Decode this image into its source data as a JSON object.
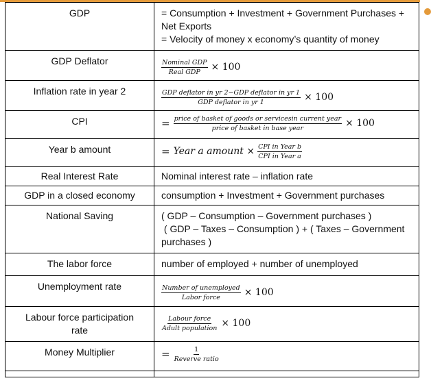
{
  "rows": {
    "gdp": {
      "term": "GDP",
      "def_line1": "= Consumption + Investment + Government Purchases +",
      "def_line2": "Net Exports",
      "def_line3": "= Velocity of money x economy’s quantity of money"
    },
    "gdp_deflator": {
      "term": "GDP Deflator",
      "numerator": "Nominal GDP",
      "denominator": "Real GDP",
      "times": "× 100"
    },
    "inflation_rate": {
      "term": "Inflation rate in year 2",
      "numerator": "GDP deflator in yr 2−GDP deflator in yr 1",
      "denominator": "GDP deflator in yr 1",
      "times": "× 100"
    },
    "cpi": {
      "term": "CPI",
      "equals": "=",
      "numerator": "price of basket of goods or servicesin current year",
      "denominator": "price of basket in base year",
      "times": "× 100"
    },
    "year_b_amount": {
      "term": "Year b amount",
      "equals": "=",
      "lhs": "Year a amount ×",
      "numerator": "CPI in Year b",
      "denominator": "CPI in Year a"
    },
    "real_interest_rate": {
      "term": "Real Interest Rate",
      "def": "Nominal interest rate – inflation rate"
    },
    "gdp_closed": {
      "term": "GDP in a closed economy",
      "def": "consumption + Investment + Government purchases"
    },
    "national_saving": {
      "term": "National Saving",
      "def_line1": "( GDP – Consumption – Government purchases )",
      "def_line2": " ( GDP – Taxes – Consumption ) + ( Taxes – Government",
      "def_line3": "purchases )"
    },
    "labor_force": {
      "term": "The labor force",
      "def": "number of employed + number of unemployed"
    },
    "unemployment_rate": {
      "term": "Unemployment rate",
      "numerator": "Number of unemployed",
      "denominator": "Labor force",
      "times": "× 100"
    },
    "lfpr": {
      "term_line1": "Labour force participation",
      "term_line2": "rate",
      "numerator": "Labour force",
      "denominator": "Adult population",
      "times": "× 100"
    },
    "money_multiplier": {
      "term": "Money Multiplier",
      "equals": "=",
      "numerator": "1",
      "denominator": "Reverve ratio"
    }
  },
  "colors": {
    "accent": "#e49a3a",
    "border": "#000000"
  }
}
